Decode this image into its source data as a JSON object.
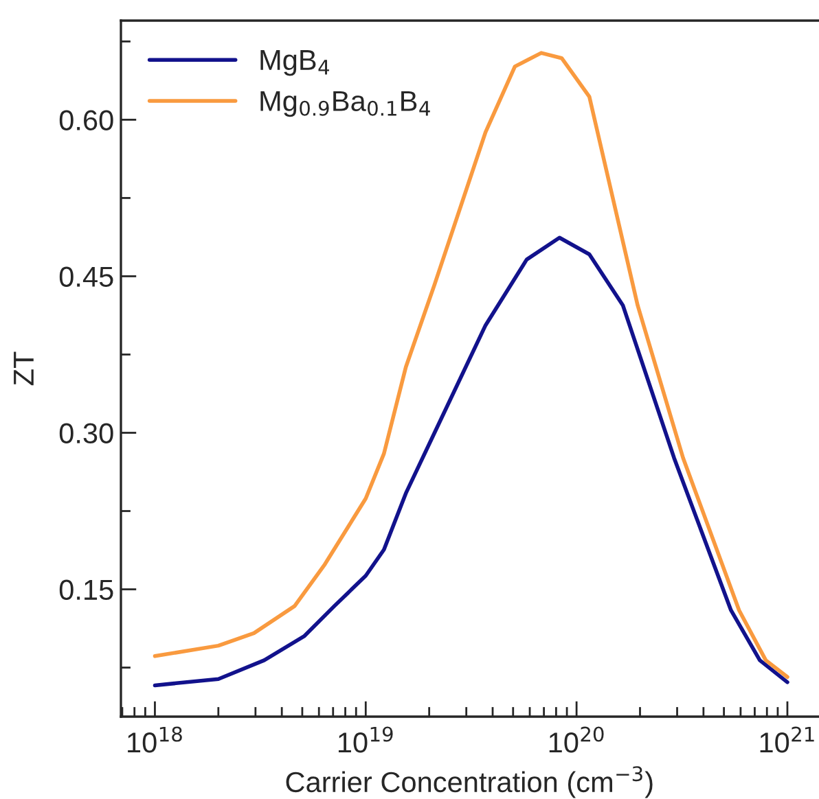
{
  "chart_data": {
    "type": "line",
    "xlabel": "Carrier Concentration (cm$^{−3}$)",
    "ylabel": "ZT",
    "log": "x",
    "legend": "top left",
    "grid": false,
    "xlim": [
      6.9e+17,
      1.4e+21
    ],
    "ylim": [
      0.028,
      0.695
    ],
    "xticks": [
      {
        "value": 1e+18,
        "label": "10$^{18}$"
      },
      {
        "value": 1e+19,
        "label": "10$^{19}$"
      },
      {
        "value": 1e+20,
        "label": "10$^{20}$"
      },
      {
        "value": 1e+21,
        "label": "10$^{21}$"
      }
    ],
    "yticks": [
      {
        "value": 0.15,
        "label": "0.15"
      },
      {
        "value": 0.3,
        "label": "0.30"
      },
      {
        "value": 0.45,
        "label": "0.45"
      },
      {
        "value": 0.6,
        "label": "0.60"
      }
    ],
    "series": [
      {
        "name": "MgB$_{4}$",
        "color": "#12128c",
        "x": [
          1e+18,
          2e+18,
          3.3e+18,
          5.1e+18,
          7.1e+18,
          1e+19,
          1.22e+19,
          1.55e+19,
          2.12e+19,
          3.7e+19,
          5.8e+19,
          8.3e+19,
          1.15e+20,
          1.66e+20,
          2.9e+20,
          5.4e+20,
          7.4e+20,
          1e+21
        ],
        "values": [
          0.058,
          0.064,
          0.082,
          0.105,
          0.134,
          0.163,
          0.188,
          0.242,
          0.3,
          0.403,
          0.466,
          0.487,
          0.471,
          0.422,
          0.276,
          0.13,
          0.082,
          0.061
        ]
      },
      {
        "name": "Mg$_{0.9}$Ba$_{0.1}$B$_{4}$",
        "color": "#f99a3f",
        "x": [
          1e+18,
          2e+18,
          2.95e+18,
          4.6e+18,
          6.4e+18,
          1e+19,
          1.22e+19,
          1.55e+19,
          2.12e+19,
          3.7e+19,
          5.1e+19,
          6.8e+19,
          8.5e+19,
          1.15e+20,
          1.95e+20,
          3.2e+20,
          5.9e+20,
          7.9e+20,
          1e+21
        ],
        "values": [
          0.086,
          0.096,
          0.108,
          0.134,
          0.174,
          0.237,
          0.28,
          0.363,
          0.442,
          0.588,
          0.651,
          0.664,
          0.659,
          0.622,
          0.422,
          0.276,
          0.13,
          0.082,
          0.066
        ]
      }
    ]
  }
}
